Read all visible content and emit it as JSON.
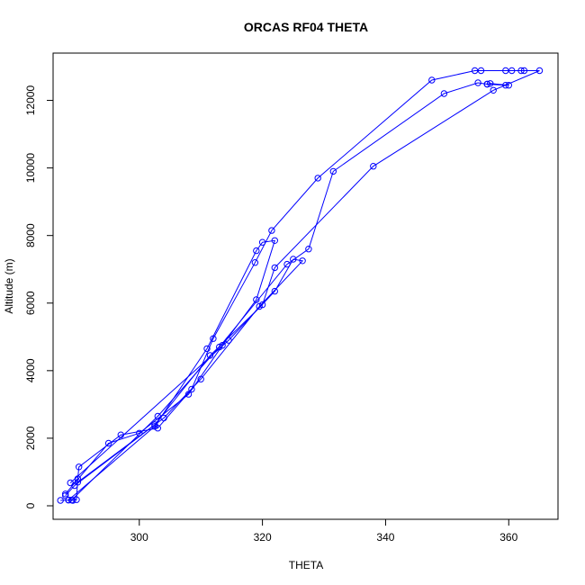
{
  "chart_data": {
    "type": "line",
    "title": "ORCAS RF04 THETA",
    "xlabel": "THETA",
    "ylabel": "Altitude (m)",
    "xlim": [
      286,
      368
    ],
    "ylim": [
      -400,
      13400
    ],
    "xticks": [
      300,
      320,
      340,
      360
    ],
    "yticks": [
      0,
      2000,
      4000,
      6000,
      8000,
      10000,
      12000
    ],
    "grid": false,
    "legend": "none",
    "color": "#0000ff",
    "series": [
      {
        "points": [
          [
            287.2,
            160
          ],
          [
            288.5,
            170
          ],
          [
            289.2,
            160
          ],
          [
            289.8,
            180
          ],
          [
            290.0,
            800
          ],
          [
            290.2,
            1150
          ],
          [
            297.0,
            2100
          ],
          [
            303.0,
            2300
          ],
          [
            308.5,
            3450
          ],
          [
            312.0,
            4950
          ],
          [
            318.8,
            7200
          ],
          [
            321.5,
            8150
          ],
          [
            329.0,
            9700
          ],
          [
            347.5,
            12600
          ],
          [
            354.5,
            12880
          ],
          [
            355.5,
            12880
          ],
          [
            359.5,
            12880
          ],
          [
            360.5,
            12880
          ],
          [
            362.0,
            12880
          ],
          [
            362.5,
            12880
          ],
          [
            365.0,
            12880
          ],
          [
            357.5,
            12300
          ],
          [
            338.0,
            10050
          ],
          [
            322.0,
            7050
          ],
          [
            320.0,
            5950
          ],
          [
            311.5,
            4450
          ],
          [
            302.5,
            2400
          ],
          [
            290.0,
            700
          ],
          [
            288.0,
            300
          ]
        ]
      },
      {
        "points": [
          [
            288.0,
            350
          ],
          [
            295.0,
            1850
          ],
          [
            300.0,
            2150
          ],
          [
            308.0,
            3300
          ],
          [
            313.5,
            4750
          ],
          [
            319.0,
            6100
          ],
          [
            322.0,
            7850
          ],
          [
            320.0,
            7800
          ],
          [
            319.0,
            7550
          ],
          [
            311.0,
            4650
          ],
          [
            302.5,
            2350
          ],
          [
            288.5,
            170
          ]
        ]
      },
      {
        "points": [
          [
            288.8,
            680
          ],
          [
            314.5,
            4900
          ],
          [
            322.0,
            6350
          ],
          [
            325.0,
            7300
          ],
          [
            326.5,
            7250
          ],
          [
            319.5,
            5900
          ],
          [
            310.0,
            3750
          ],
          [
            304.0,
            2600
          ],
          [
            289.5,
            600
          ]
        ]
      },
      {
        "points": [
          [
            289.0,
            170
          ],
          [
            303.0,
            2650
          ],
          [
            313.0,
            4700
          ],
          [
            324.0,
            7150
          ],
          [
            327.5,
            7600
          ],
          [
            331.5,
            9900
          ],
          [
            349.5,
            12200
          ],
          [
            355.0,
            12520
          ],
          [
            356.5,
            12480
          ],
          [
            359.5,
            12450
          ],
          [
            360.0,
            12450
          ],
          [
            357.0,
            12500
          ],
          [
            356.5,
            12480
          ]
        ]
      }
    ]
  }
}
